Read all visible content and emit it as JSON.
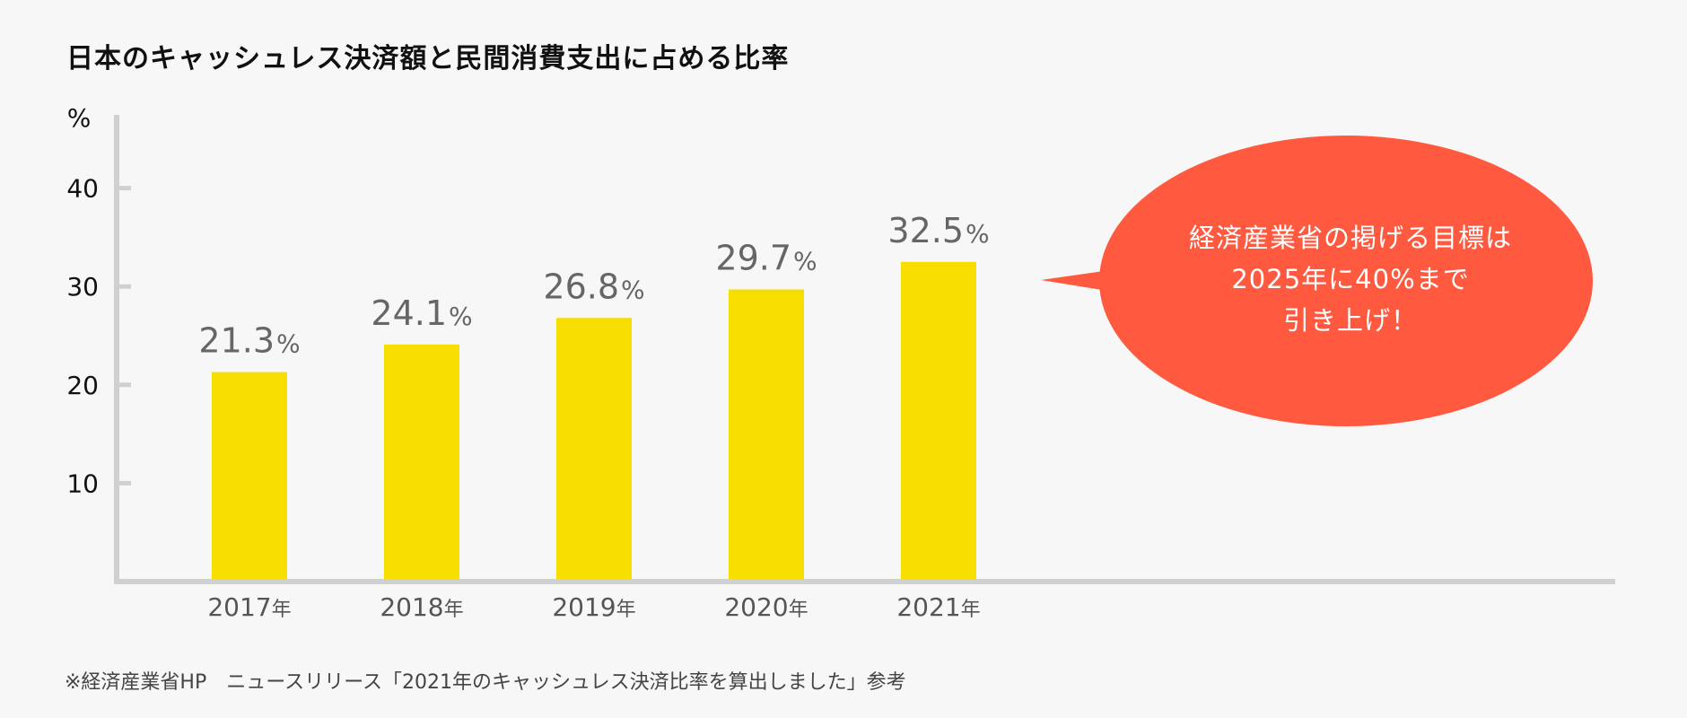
{
  "chart_data": {
    "type": "bar",
    "title": "日本のキャッシュレス決済額と民間消費支出に占める比率",
    "ylabel": "%",
    "ylim": [
      0,
      50
    ],
    "yticks": [
      10,
      20,
      30,
      40
    ],
    "categories": [
      "2017",
      "2018",
      "2019",
      "2020",
      "2021"
    ],
    "category_suffix": "年",
    "values": [
      21.3,
      24.1,
      26.8,
      29.7,
      32.5
    ],
    "value_labels": [
      "21.3",
      "24.1",
      "26.8",
      "29.7",
      "32.5"
    ],
    "value_suffix": "%",
    "bar_color": "#f8de00",
    "axis_color": "#d0d0d0",
    "grid": false,
    "legend": "none",
    "annotation": {
      "lines": [
        "経済産業省の掲げる目標は",
        "2025年に40%まで",
        "引き上げ！"
      ],
      "color": "#ff5a40"
    }
  },
  "source_note": "※経済産業省HP　ニュースリリース「2021年のキャッシュレス決済比率を算出しました」参考"
}
